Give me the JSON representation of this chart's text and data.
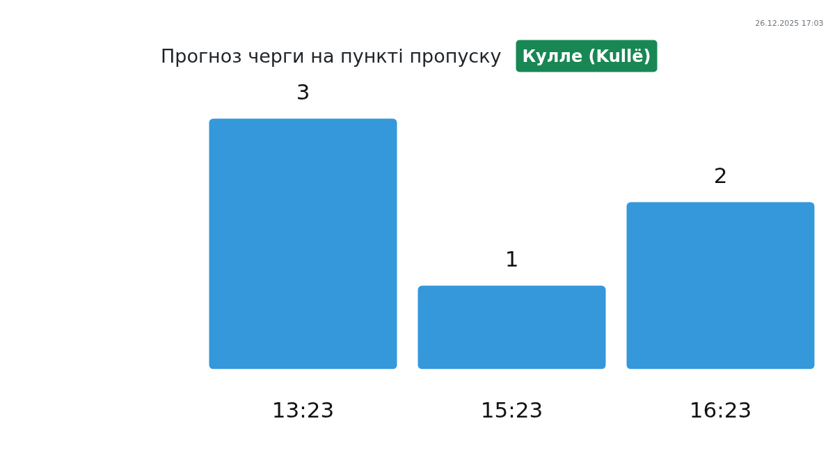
{
  "chart_data": {
    "type": "bar",
    "title": "Прогноз черги на пункті пропуску",
    "subtitle": "Кулле (Kullë)",
    "categories": [
      "13:23",
      "15:23",
      "16:23"
    ],
    "values": [
      3,
      1,
      2
    ],
    "color": "#3498db",
    "data_labels": true,
    "annotations": [
      "26.12.2025 17:03"
    ]
  }
}
